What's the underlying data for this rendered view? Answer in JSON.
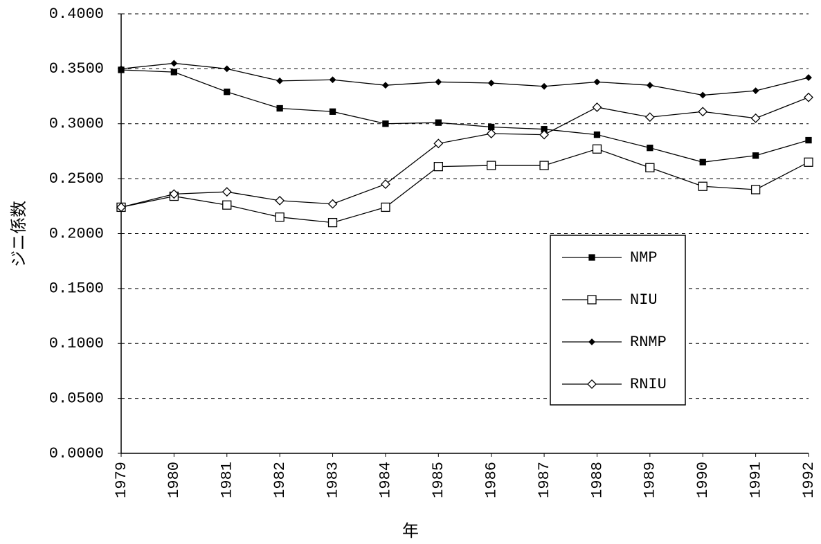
{
  "chart_data": {
    "type": "line",
    "x_label": "年",
    "y_label": "ジニ係数",
    "categories": [
      "1979",
      "1980",
      "1981",
      "1982",
      "1983",
      "1984",
      "1985",
      "1986",
      "1987",
      "1988",
      "1989",
      "1990",
      "1991",
      "1992"
    ],
    "series": [
      {
        "name": "NMP",
        "color": "#000000",
        "marker": "square",
        "filled": true,
        "values": [
          0.349,
          0.347,
          0.329,
          0.314,
          0.311,
          0.3,
          0.301,
          0.297,
          0.295,
          0.29,
          0.278,
          0.265,
          0.271,
          0.285
        ]
      },
      {
        "name": "NIU",
        "color": "#000000",
        "marker": "square",
        "filled": false,
        "values": [
          0.224,
          0.234,
          0.226,
          0.215,
          0.21,
          0.224,
          0.261,
          0.262,
          0.262,
          0.277,
          0.26,
          0.243,
          0.24,
          0.265
        ]
      },
      {
        "name": "RNMP",
        "color": "#000000",
        "marker": "diamond",
        "filled": true,
        "values": [
          0.35,
          0.355,
          0.35,
          0.339,
          0.34,
          0.335,
          0.338,
          0.337,
          0.334,
          0.338,
          0.335,
          0.326,
          0.33,
          0.342
        ]
      },
      {
        "name": "RNIU",
        "color": "#000000",
        "marker": "diamond",
        "filled": false,
        "values": [
          0.224,
          0.236,
          0.238,
          0.23,
          0.227,
          0.245,
          0.282,
          0.291,
          0.29,
          0.315,
          0.306,
          0.311,
          0.305,
          0.324
        ]
      }
    ],
    "ylim": [
      0,
      0.4
    ],
    "yticks": [
      {
        "value": 0,
        "label": "0.0000"
      },
      {
        "value": 0.05,
        "label": "0.0500"
      },
      {
        "value": 0.1,
        "label": "0.1000"
      },
      {
        "value": 0.15,
        "label": "0.1500"
      },
      {
        "value": 0.2,
        "label": "0.2000"
      },
      {
        "value": 0.25,
        "label": "0.2500"
      },
      {
        "value": 0.3,
        "label": "0.3000"
      },
      {
        "value": 0.35,
        "label": "0.3500"
      },
      {
        "value": 0.4,
        "label": "0.4000"
      }
    ],
    "grid": true
  }
}
